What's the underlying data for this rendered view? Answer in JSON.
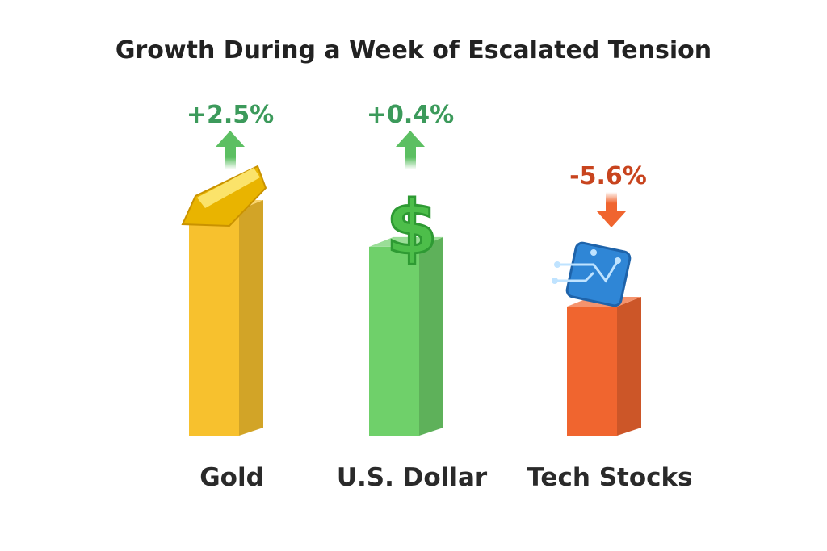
{
  "chart_data": {
    "type": "bar",
    "title": "Growth During a Week of Escalated Tension",
    "categories": [
      "Gold",
      "U.S. Dollar",
      "Tech Stocks"
    ],
    "values": [
      2.5,
      0.4,
      -5.6
    ],
    "value_labels": [
      "+2.5%",
      "+0.4%",
      "-5.6%"
    ],
    "unit": "%",
    "icons": [
      "gold-bar-icon",
      "dollar-sign-icon",
      "circuit-chip-icon"
    ],
    "bar_colors": [
      "#F7C12E",
      "#6FD06A",
      "#F0652F"
    ],
    "label_colors": [
      "#3C9A5B",
      "#3C9A5B",
      "#C8441E"
    ],
    "arrow_directions": [
      "up",
      "up",
      "down"
    ],
    "grid": false,
    "legend": "none"
  }
}
